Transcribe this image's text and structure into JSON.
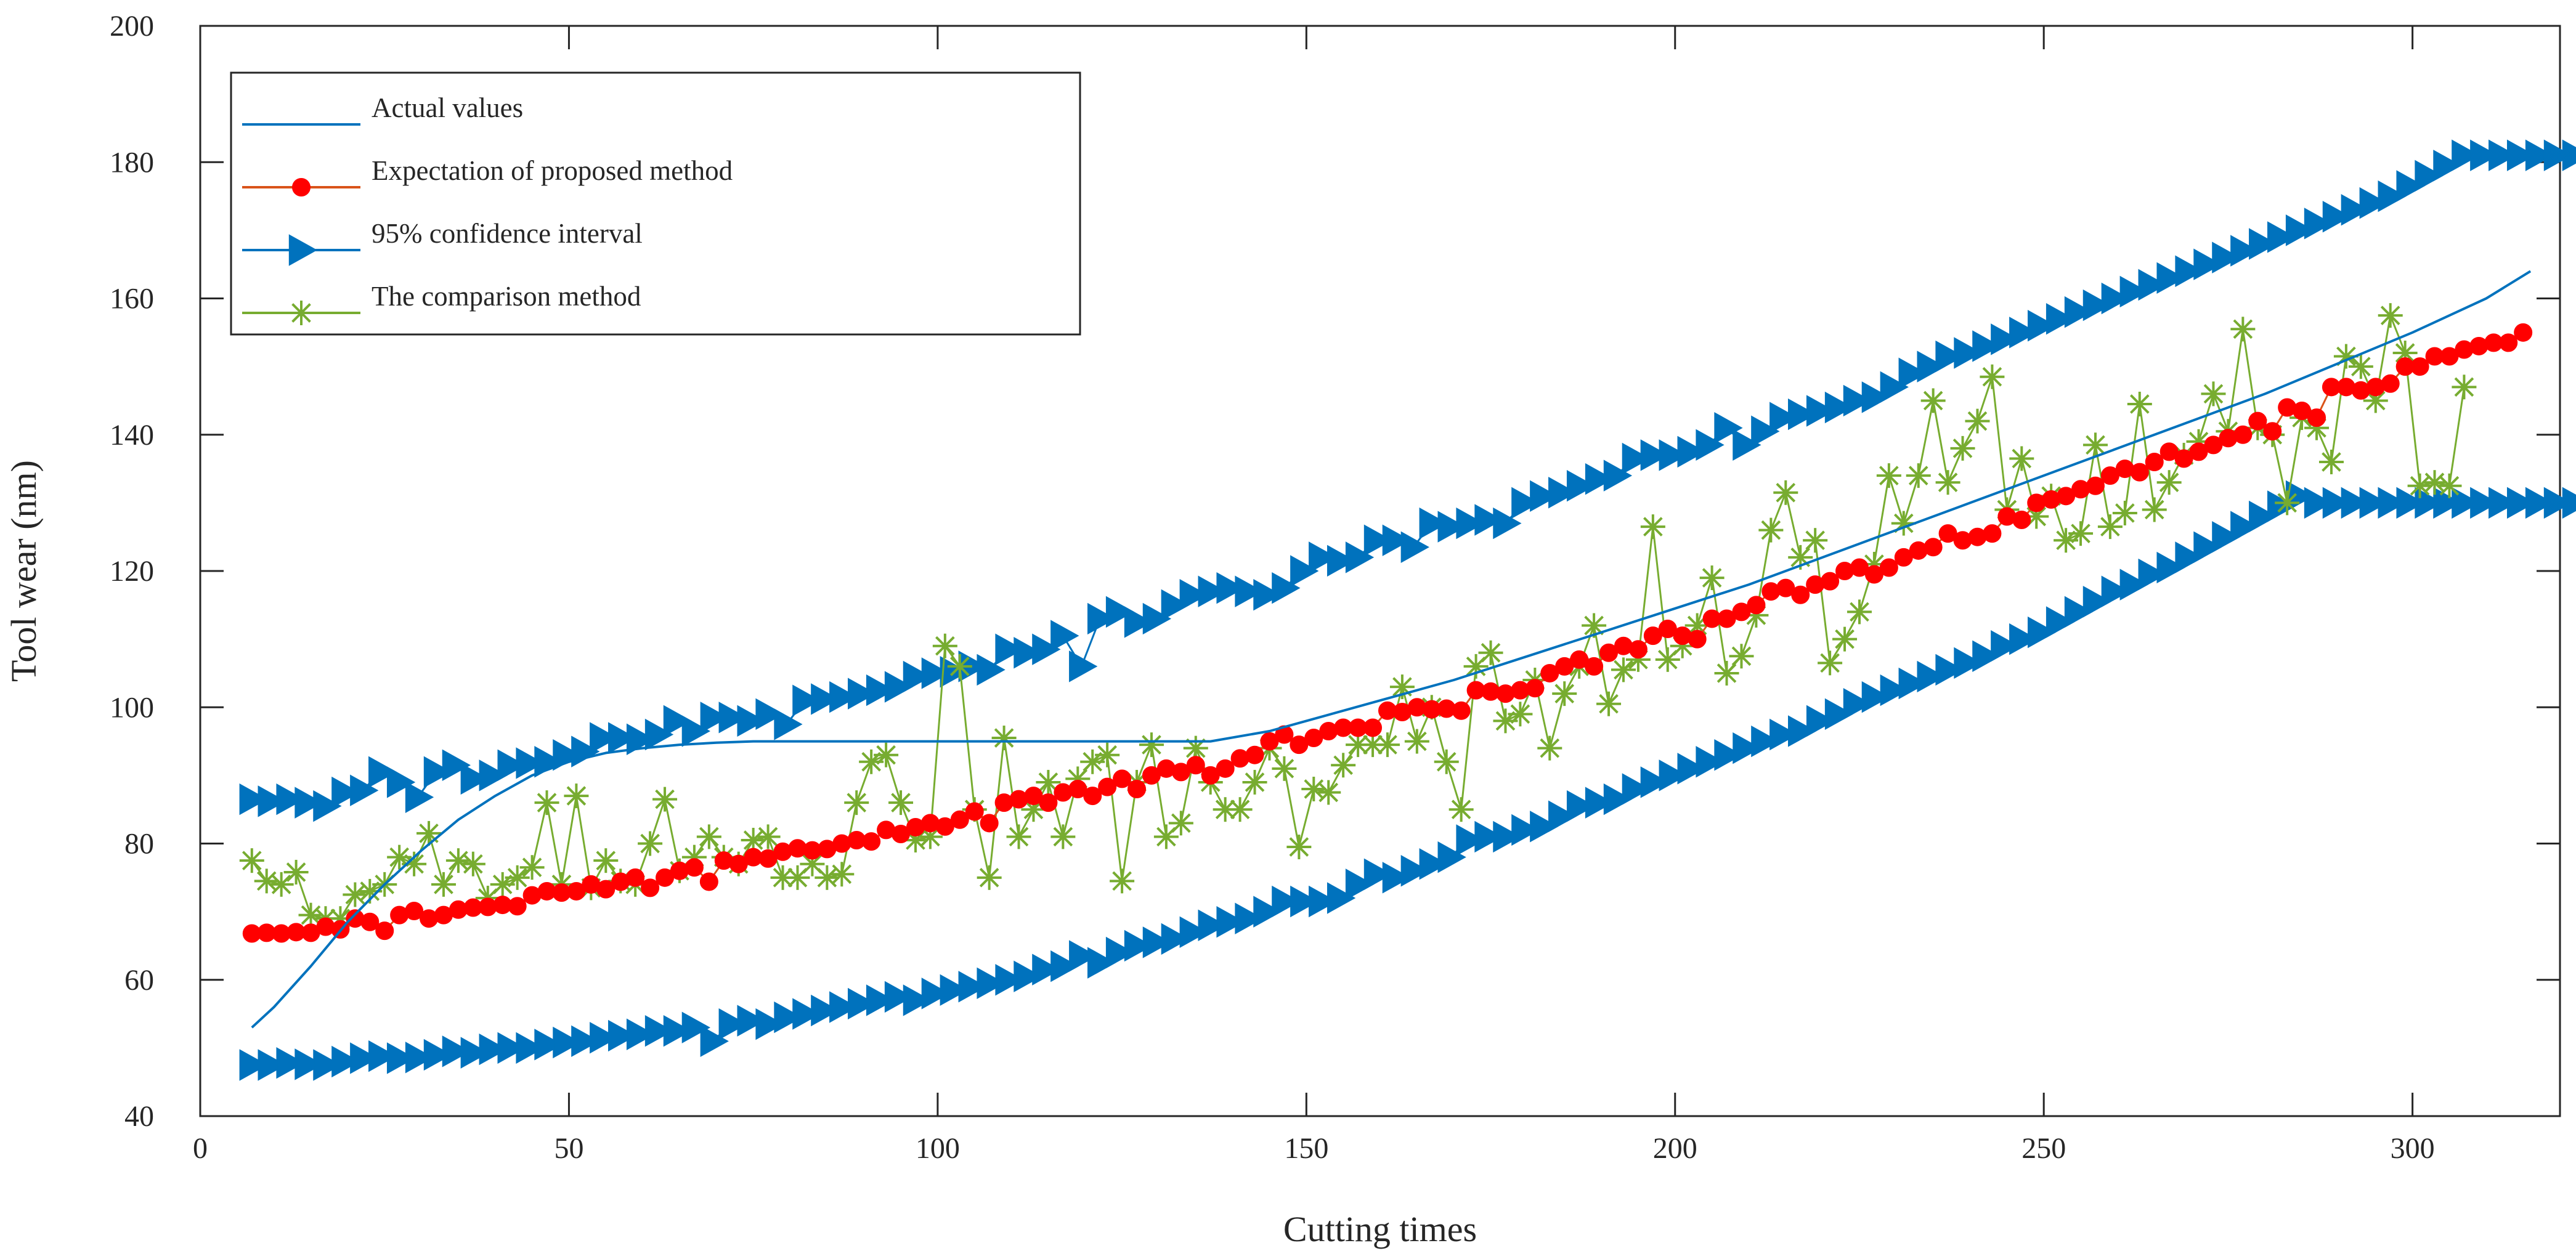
{
  "chart_data": {
    "type": "line",
    "title": "",
    "xlabel": "Cutting times",
    "ylabel": "Tool wear (nm)",
    "xlim": [
      0,
      320
    ],
    "ylim": [
      40,
      200
    ],
    "xticks": [
      0,
      50,
      100,
      150,
      200,
      250,
      300
    ],
    "yticks": [
      40,
      60,
      80,
      100,
      120,
      140,
      160,
      180,
      200
    ],
    "legend_position": "top-left",
    "colors": {
      "actual": "#0072BD",
      "expectation": "#FF0000",
      "expectation_line": "#D95319",
      "confidence": "#0072BD",
      "comparison": "#77AC30"
    },
    "series": [
      {
        "name": "Actual values",
        "marker": "none",
        "x": [
          7,
          10,
          15,
          20,
          25,
          30,
          35,
          40,
          45,
          50,
          55,
          60,
          65,
          70,
          75,
          80,
          90,
          100,
          110,
          120,
          130,
          137,
          145,
          150,
          160,
          170,
          180,
          190,
          200,
          210,
          220,
          230,
          240,
          250,
          260,
          270,
          280,
          290,
          300,
          310,
          316
        ],
        "y": [
          53,
          56,
          62,
          68.5,
          74,
          79,
          83.5,
          87,
          90,
          92,
          93.3,
          94,
          94.5,
          94.8,
          95,
          95,
          95,
          95,
          95,
          95,
          95,
          95,
          96.5,
          98,
          101,
          104,
          107.5,
          111,
          114.5,
          118,
          122,
          126,
          130,
          134,
          138,
          142,
          146,
          150.5,
          155,
          160,
          164
        ]
      },
      {
        "name": "Expectation of proposed method",
        "marker": "circle",
        "x_start": 7,
        "x_step": 2,
        "y": [
          66.8,
          66.9,
          66.8,
          67.0,
          66.9,
          67.8,
          67.4,
          69.0,
          68.5,
          67.2,
          69.5,
          70.1,
          69.0,
          69.5,
          70.3,
          70.6,
          70.7,
          71.0,
          70.8,
          72.4,
          73.0,
          72.8,
          73.0,
          74.0,
          73.3,
          74.4,
          75.0,
          73.5,
          75.0,
          76.0,
          76.5,
          74.4,
          77.5,
          77.0,
          78.0,
          77.8,
          78.8,
          79.3,
          79.0,
          79.2,
          80.0,
          80.5,
          80.3,
          82.0,
          81.4,
          82.4,
          83.0,
          82.5,
          83.5,
          84.7,
          83.0,
          86.0,
          86.5,
          87.0,
          86.0,
          87.5,
          88.0,
          87.0,
          88.3,
          89.5,
          88.0,
          90.0,
          91.0,
          90.5,
          91.5,
          90.0,
          91.0,
          92.5,
          93.0,
          95.0,
          96.0,
          94.5,
          95.5,
          96.5,
          97.0,
          97.0,
          97.0,
          99.5,
          99.3,
          100.0,
          99.7,
          99.8,
          99.5,
          102.5,
          102.3,
          102.0,
          102.5,
          102.8,
          105.0,
          106.0,
          107.0,
          106.0,
          108.0,
          109.0,
          108.5,
          110.5,
          111.5,
          110.5,
          110.0,
          113.0,
          113.0,
          114.0,
          115.0,
          117.0,
          117.5,
          116.5,
          118.0,
          118.5,
          120.0,
          120.5,
          119.5,
          120.5,
          122.0,
          123.0,
          123.5,
          125.5,
          124.5,
          125.0,
          125.5,
          128.0,
          127.5,
          130.0,
          130.5,
          131.0,
          132.0,
          132.5,
          134.0,
          135.0,
          134.5,
          136.0,
          137.5,
          136.5,
          137.5,
          138.5,
          139.5,
          140.0,
          142.0,
          140.5,
          144.0,
          143.5,
          142.5,
          147.0,
          147.0,
          146.5,
          147.0,
          147.5,
          150.0,
          150.0,
          151.5,
          151.5,
          152.5,
          153.0,
          153.5,
          153.5,
          155.0
        ]
      },
      {
        "name": "95% confidence interval",
        "marker": "triangle-right",
        "upper": {
          "x_start": 7,
          "x_step": 2.5,
          "y": [
            86.5,
            86.2,
            86.5,
            86.0,
            85.5,
            87.5,
            87.8,
            90.5,
            89.0,
            86.8,
            90.5,
            91.5,
            89.5,
            90.0,
            91.5,
            91.8,
            92.0,
            93.0,
            93.5,
            95.5,
            95.5,
            95.3,
            96.0,
            98.0,
            96.5,
            98.5,
            98.5,
            98.0,
            99.0,
            97.5,
            101.0,
            101.2,
            101.5,
            102.0,
            102.5,
            103.0,
            104.5,
            105.0,
            105.2,
            106.0,
            105.5,
            108.5,
            108.0,
            108.5,
            110.5,
            106.0,
            113.0,
            114.0,
            112.5,
            113.0,
            115.0,
            116.5,
            117.0,
            117.5,
            117.0,
            116.5,
            117.5,
            120.0,
            122.0,
            121.5,
            122.0,
            124.5,
            124.5,
            123.5,
            127.0,
            126.5,
            127.0,
            127.5,
            127.0,
            130.0,
            131.0,
            131.5,
            132.5,
            133.5,
            134.0,
            136.5,
            137.0,
            137.0,
            137.5,
            138.5,
            141.0,
            138.5,
            140.5,
            142.5,
            143.0,
            143.5,
            144.0,
            145.0,
            145.5,
            147.0,
            149.0,
            150.0,
            151.5,
            152.0,
            153.0,
            154.0,
            155.0,
            156.0,
            157.0,
            158.0,
            159.0,
            160.0,
            161.0,
            162.0,
            163.0,
            164.0,
            165.0,
            166.0,
            167.0,
            168.0,
            169.0,
            170.0,
            171.0,
            172.0,
            173.0,
            174.0,
            175.0,
            176.5,
            178.0,
            179.5,
            181.0,
            181.0,
            181.0,
            181.0,
            181.0,
            181.0,
            181.0
          ]
        },
        "lower": {
          "x_start": 7,
          "x_step": 2.5,
          "y": [
            47.5,
            47.5,
            47.8,
            47.6,
            47.5,
            48.0,
            48.5,
            48.8,
            48.5,
            48.6,
            49.0,
            49.5,
            49.3,
            49.8,
            50.0,
            50.0,
            50.5,
            50.8,
            51.0,
            51.5,
            51.8,
            52.0,
            52.5,
            52.5,
            53.0,
            51.0,
            53.5,
            54.0,
            53.5,
            54.5,
            55.0,
            55.5,
            56.0,
            56.5,
            57.0,
            57.5,
            57.0,
            58.0,
            58.5,
            59.0,
            59.5,
            60.0,
            60.5,
            61.5,
            62.0,
            63.5,
            62.5,
            64.0,
            65.0,
            65.5,
            66.0,
            67.0,
            68.0,
            68.5,
            69.0,
            70.0,
            71.5,
            71.5,
            71.5,
            72.0,
            74.0,
            75.5,
            75.0,
            76.0,
            77.0,
            78.0,
            80.5,
            81.0,
            81.0,
            82.0,
            82.5,
            84.0,
            85.5,
            86.0,
            86.5,
            88.0,
            89.0,
            90.0,
            91.0,
            92.0,
            93.0,
            94.0,
            95.0,
            96.0,
            96.5,
            98.0,
            99.0,
            100.5,
            101.5,
            102.5,
            103.5,
            104.5,
            105.5,
            106.5,
            107.5,
            109.0,
            110.0,
            111.0,
            112.5,
            114.0,
            115.5,
            117.0,
            118.0,
            119.5,
            120.5,
            122.0,
            123.5,
            125.0,
            126.5,
            128.0,
            129.5,
            131.0,
            130.0,
            130.0,
            130.0,
            130.0,
            130.0,
            130.0,
            130.0,
            130.0,
            130.0,
            130.0,
            130.0,
            130.0,
            130.0,
            130.0,
            130.0
          ]
        }
      },
      {
        "name": "The comparison method",
        "marker": "asterisk",
        "x_start": 7,
        "x_step": 2,
        "y": [
          77.5,
          74.5,
          74.0,
          75.8,
          69.5,
          69.0,
          69.0,
          72.5,
          73.0,
          74.0,
          78.0,
          77.0,
          81.5,
          74.0,
          77.5,
          77.0,
          72.0,
          74.0,
          75.0,
          76.5,
          86.0,
          74.0,
          87.0,
          73.5,
          77.5,
          74.5,
          74.0,
          80.0,
          86.5,
          76.0,
          78.0,
          81.0,
          78.0,
          77.0,
          80.5,
          81.0,
          75.0,
          75.0,
          77.0,
          75.0,
          75.5,
          86.0,
          92.0,
          93.0,
          86.0,
          80.5,
          81.0,
          109.0,
          106.0,
          85.0,
          75.0,
          95.5,
          81.0,
          85.0,
          89.0,
          81.0,
          89.5,
          92.0,
          93.0,
          74.5,
          89.0,
          94.5,
          81.0,
          83.0,
          94.0,
          89.0,
          85.0,
          85.0,
          89.0,
          94.0,
          91.0,
          79.5,
          88.0,
          87.5,
          91.5,
          94.5,
          94.5,
          94.5,
          103.0,
          95.0,
          100.0,
          92.0,
          85.0,
          106.0,
          108.0,
          98.0,
          99.0,
          104.0,
          94.0,
          102.0,
          106.0,
          112.0,
          100.5,
          105.5,
          107.0,
          126.5,
          107.0,
          109.0,
          112.0,
          119.0,
          105.0,
          107.5,
          113.5,
          126.0,
          131.5,
          122.0,
          124.5,
          106.5,
          110.0,
          114.0,
          121.0,
          134.0,
          127.0,
          134.0,
          145.0,
          133.0,
          138.0,
          142.0,
          148.5,
          129.0,
          136.5,
          128.0,
          131.0,
          124.5,
          125.5,
          138.5,
          126.5,
          128.5,
          144.5,
          129.0,
          133.0,
          137.0,
          139.0,
          146.0,
          140.5,
          155.5,
          141.0,
          140.0,
          130.0,
          142.5,
          141.0,
          136.0,
          151.5,
          150.0,
          145.0,
          157.5,
          152.0,
          132.5,
          133.0,
          132.5,
          147.0
        ]
      }
    ]
  }
}
